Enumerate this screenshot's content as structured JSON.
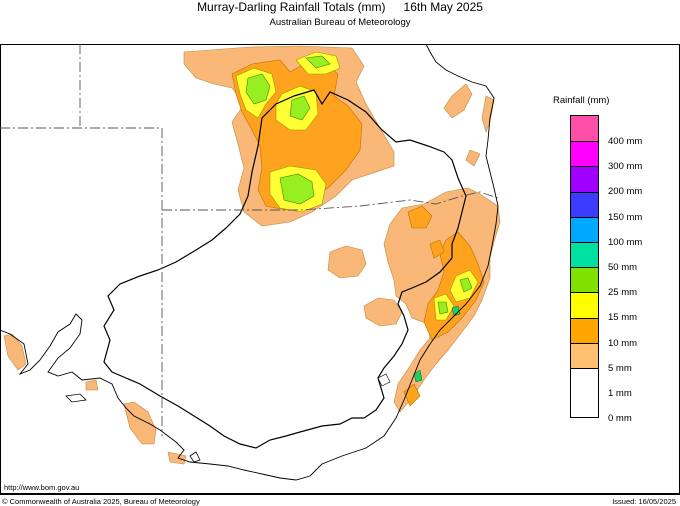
{
  "header": {
    "title": "Murray-Darling Rainfall Totals (mm)",
    "date": "16th May 2025",
    "subtitle": "Australian Bureau of Meteorology"
  },
  "legend": {
    "title": "Rainfall (mm)",
    "items": [
      {
        "label": "400 mm",
        "color": "#ff4fa8"
      },
      {
        "label": "300 mm",
        "color": "#ff00ff"
      },
      {
        "label": "200 mm",
        "color": "#a000ff"
      },
      {
        "label": "150 mm",
        "color": "#3c3cff"
      },
      {
        "label": "100 mm",
        "color": "#00a8ff"
      },
      {
        "label": "50 mm",
        "color": "#00e0a0"
      },
      {
        "label": "25 mm",
        "color": "#80e000"
      },
      {
        "label": "15 mm",
        "color": "#ffff00"
      },
      {
        "label": "10 mm",
        "color": "#ffa500"
      },
      {
        "label": "5 mm",
        "color": "#ffc070"
      },
      {
        "label": "1 mm",
        "color": "#ffffff"
      },
      {
        "label": "0 mm",
        "color": ""
      }
    ]
  },
  "footer": {
    "url": "http://www.bom.gov.au",
    "copyright": "© Commonwealth of Australia 2025, Bureau of Meteorology",
    "issued": "Issued: 16/05/2025"
  }
}
